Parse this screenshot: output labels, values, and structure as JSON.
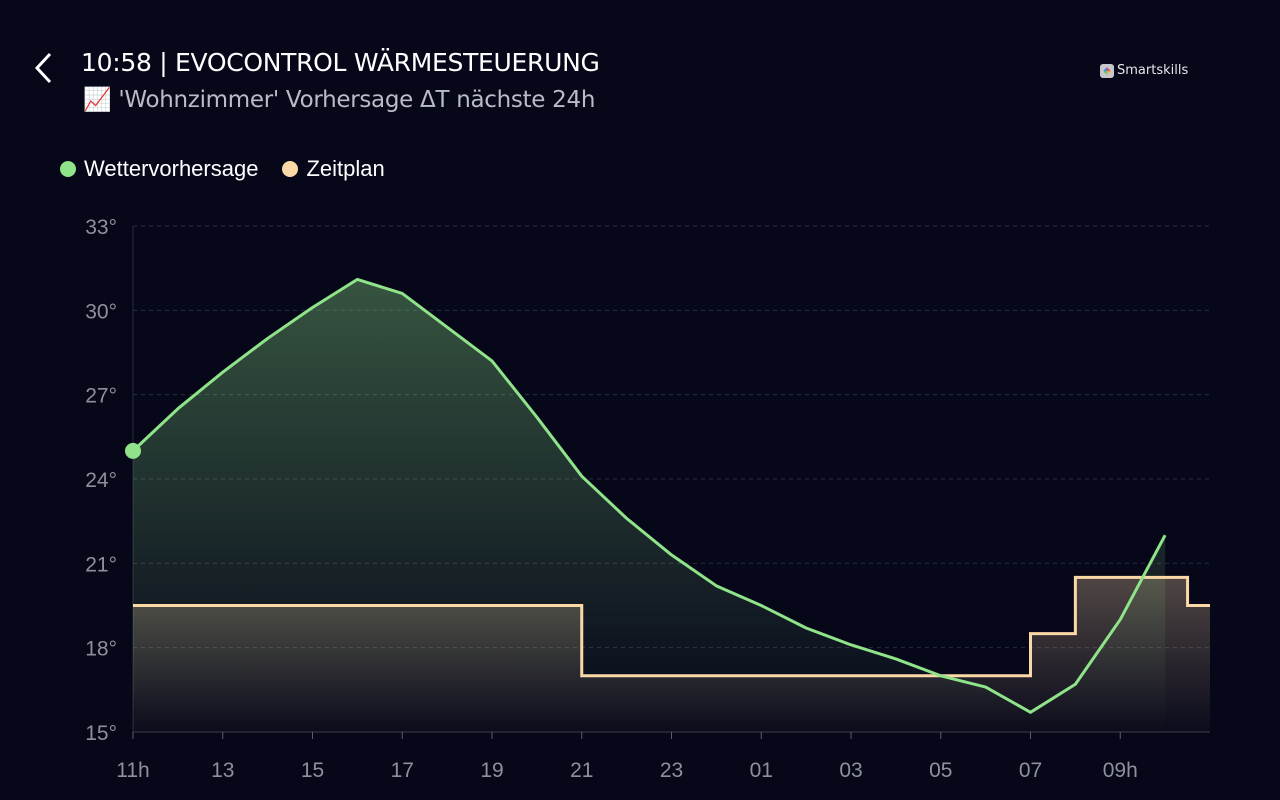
{
  "header": {
    "title": "10:58 | EVOCONTROL WÄRMESTEUERUNG",
    "subtitle_icon": "chart-increasing-icon",
    "subtitle": "'Wohnzimmer' Vorhersage ΔT nächste 24h",
    "back_icon": "chevron-left-icon",
    "brand": "Smartskills"
  },
  "chart_data": {
    "type": "line",
    "title": "",
    "xlabel": "",
    "ylabel": "",
    "grid": true,
    "legend_placement": "top-left",
    "ylim": [
      15,
      33
    ],
    "yticks": [
      "15°",
      "18°",
      "21°",
      "24°",
      "27°",
      "30°",
      "33°"
    ],
    "ytick_values": [
      15,
      18,
      21,
      24,
      27,
      30,
      33
    ],
    "xlim_hours": [
      11,
      35
    ],
    "xticks": [
      "11h",
      "13",
      "15",
      "17",
      "19",
      "21",
      "23",
      "01",
      "03",
      "05",
      "07",
      "09h"
    ],
    "series": [
      {
        "name": "Wettervorhersage",
        "color": "#8fe388",
        "style": "line-area",
        "x": [
          "11",
          "12",
          "13",
          "14",
          "15",
          "16",
          "17",
          "18",
          "19",
          "20",
          "21",
          "22",
          "23",
          "00",
          "01",
          "02",
          "03",
          "04",
          "05",
          "06",
          "07",
          "08",
          "09",
          "10"
        ],
        "values": [
          25.0,
          26.5,
          27.8,
          29.0,
          30.1,
          31.1,
          30.6,
          29.4,
          28.2,
          26.2,
          24.1,
          22.6,
          21.3,
          20.2,
          19.5,
          18.7,
          18.1,
          17.6,
          17.0,
          16.6,
          15.7,
          16.7,
          19.0,
          22.0
        ]
      },
      {
        "name": "Zeitplan",
        "color": "#fbd9a7",
        "style": "step-area",
        "x": [
          "11:00",
          "21:00",
          "07:00",
          "08:00",
          "10:30",
          "11:00"
        ],
        "values": [
          19.5,
          17.0,
          18.5,
          20.5,
          19.5,
          19.5
        ]
      }
    ]
  }
}
